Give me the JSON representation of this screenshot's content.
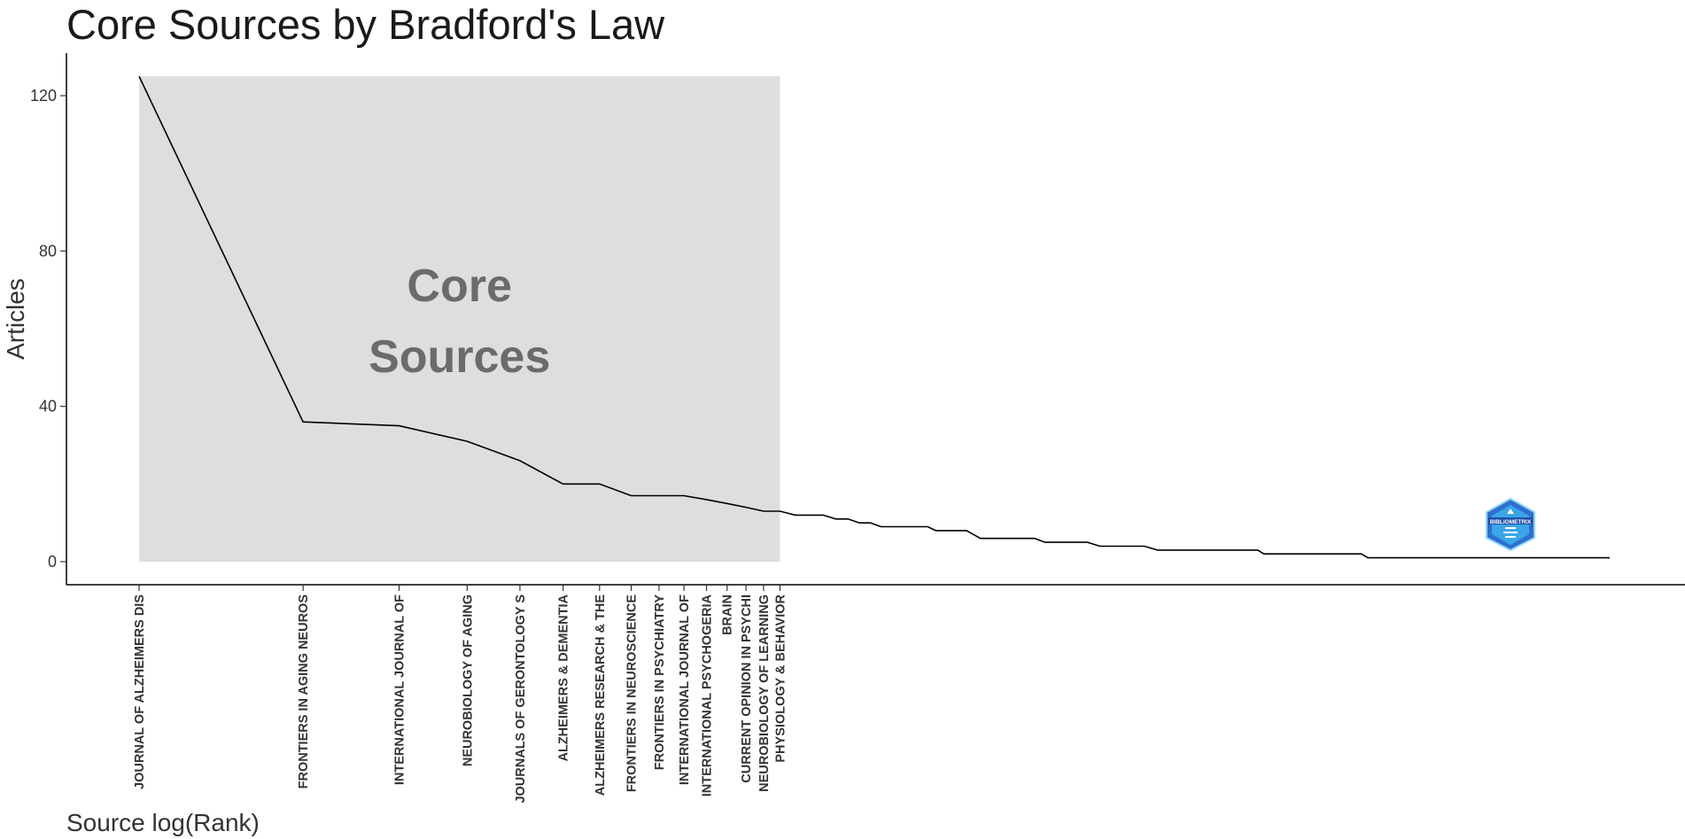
{
  "chart_data": {
    "type": "line",
    "title": "Core Sources by Bradford's Law",
    "xlabel": "Source log(Rank)",
    "ylabel": "Articles",
    "x_scale": "log",
    "ylim": [
      0,
      125
    ],
    "yticks": [
      0,
      40,
      80,
      120
    ],
    "grid": false,
    "core_annotation": [
      "Core",
      "Sources"
    ],
    "core_zone_color": "#dedede",
    "line_color": "#000000",
    "core_sources": [
      {
        "rank": 1,
        "label": "JOURNAL OF ALZHEIMERS DIS",
        "articles": 125
      },
      {
        "rank": 2,
        "label": "FRONTIERS IN AGING NEUROS",
        "articles": 36
      },
      {
        "rank": 3,
        "label": "INTERNATIONAL JOURNAL OF",
        "articles": 35
      },
      {
        "rank": 4,
        "label": "NEUROBIOLOGY OF AGING",
        "articles": 31
      },
      {
        "rank": 5,
        "label": "JOURNALS OF GERONTOLOGY S",
        "articles": 26
      },
      {
        "rank": 6,
        "label": "ALZHEIMERS & DEMENTIA",
        "articles": 20
      },
      {
        "rank": 7,
        "label": "ALZHEIMERS RESEARCH & THE",
        "articles": 20
      },
      {
        "rank": 8,
        "label": "FRONTIERS IN NEUROSCIENCE",
        "articles": 17
      },
      {
        "rank": 9,
        "label": "FRONTIERS IN PSYCHIATRY",
        "articles": 17
      },
      {
        "rank": 10,
        "label": "INTERNATIONAL JOURNAL OF",
        "articles": 17
      },
      {
        "rank": 11,
        "label": "INTERNATIONAL PSYCHOGERIA",
        "articles": 16
      },
      {
        "rank": 12,
        "label": "BRAIN",
        "articles": 15
      },
      {
        "rank": 13,
        "label": "CURRENT OPINION IN PSYCHI",
        "articles": 14
      },
      {
        "rank": 14,
        "label": "NEUROBIOLOGY OF LEARNING",
        "articles": 13
      },
      {
        "rank": 15,
        "label": "PHYSIOLOGY & BEHAVIOR",
        "articles": 13
      }
    ],
    "tail_series": [
      {
        "rank": 16,
        "articles": 12
      },
      {
        "rank": 18,
        "articles": 12
      },
      {
        "rank": 19,
        "articles": 11
      },
      {
        "rank": 20,
        "articles": 11
      },
      {
        "rank": 21,
        "articles": 10
      },
      {
        "rank": 22,
        "articles": 10
      },
      {
        "rank": 23,
        "articles": 9
      },
      {
        "rank": 28,
        "articles": 9
      },
      {
        "rank": 29,
        "articles": 8
      },
      {
        "rank": 33,
        "articles": 8
      },
      {
        "rank": 35,
        "articles": 6
      },
      {
        "rank": 44,
        "articles": 6
      },
      {
        "rank": 46,
        "articles": 5
      },
      {
        "rank": 55,
        "articles": 5
      },
      {
        "rank": 58,
        "articles": 4
      },
      {
        "rank": 70,
        "articles": 4
      },
      {
        "rank": 74,
        "articles": 3
      },
      {
        "rank": 113,
        "articles": 3
      },
      {
        "rank": 116,
        "articles": 2
      },
      {
        "rank": 175,
        "articles": 2
      },
      {
        "rank": 180,
        "articles": 1
      },
      {
        "rank": 500,
        "articles": 1
      }
    ]
  },
  "watermark": {
    "icon": "bibliometrix-logo-icon",
    "text": "BIBLIOMETRIX",
    "color": "#3a7fd9"
  }
}
